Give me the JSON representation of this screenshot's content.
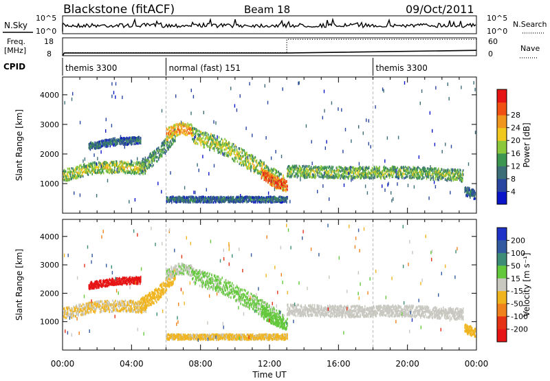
{
  "header": {
    "station": "Blackstone (fitACF)",
    "beam": "Beam 18",
    "date": "09/Oct/2011"
  },
  "noise_panel": {
    "left_label": "N.Sky",
    "left_top_tick": "10^5",
    "left_bottom_tick": "10^0",
    "right_label": "N.Search",
    "right_top_tick": "10^5",
    "right_bottom_tick": "10^0"
  },
  "freq_panel": {
    "left_label_1": "Freq.",
    "left_label_2": "[MHz]",
    "left_ticks": [
      "18",
      "8"
    ],
    "right_label": "Nave",
    "right_ticks": [
      "60",
      "0"
    ]
  },
  "cpid_panel": {
    "label": "CPID",
    "segments": [
      {
        "name": "themis 3300",
        "start_hour": 0,
        "end_hour": 6
      },
      {
        "name": "normal (fast) 151",
        "start_hour": 6,
        "end_hour": 18
      },
      {
        "name": "themis 3300",
        "start_hour": 18,
        "end_hour": 24
      }
    ]
  },
  "power_panel": {
    "ylabel": "Slant Range [km]",
    "yticks": [
      "1000",
      "2000",
      "3000",
      "4000"
    ],
    "colorbar_label": "Power [dB]",
    "colorbar_ticks": [
      "4",
      "8",
      "12",
      "16",
      "20",
      "24",
      "28"
    ],
    "colorbar_colors": [
      "#0a14c8",
      "#2846a0",
      "#3c6e78",
      "#3c9650",
      "#8cc83c",
      "#f0c81e",
      "#f0961e",
      "#f05014",
      "#e61414"
    ]
  },
  "velocity_panel": {
    "ylabel": "Slant Range [km]",
    "yticks": [
      "1000",
      "2000",
      "3000",
      "4000"
    ],
    "colorbar_label": "Velocity [m s⁻¹]",
    "colorbar_ticks": [
      "200",
      "100",
      "50",
      "15",
      "-15",
      "-50",
      "-100",
      "-200"
    ],
    "colorbar_colors": [
      "#1e32c8",
      "#325aa0",
      "#3c8c78",
      "#64c83c",
      "#c8c8c0",
      "#f0b41e",
      "#f0821e",
      "#e63214",
      "#e61414"
    ]
  },
  "xaxis": {
    "ticks": [
      "00:00",
      "04:00",
      "08:00",
      "12:00",
      "16:00",
      "20:00",
      "00:00"
    ],
    "label": "Time UT"
  },
  "chart_data": {
    "type": "heatmap",
    "x_range_hours": [
      0,
      24
    ],
    "y_range_km": [
      0,
      4600
    ],
    "power_scale_db": [
      0,
      32
    ],
    "velocity_scale_ms": [
      -250,
      250
    ],
    "frequency": {
      "x_hours": [
        0,
        0.1,
        13,
        24
      ],
      "mhz": [
        8,
        9.5,
        9.5,
        11
      ]
    },
    "nave": {
      "x_hours": [
        0,
        0.1,
        13,
        13,
        18,
        24
      ],
      "values": [
        0,
        10,
        10,
        55,
        55,
        55
      ]
    },
    "scatter_bands": [
      {
        "start_h": 0.0,
        "end_h": 4.8,
        "center_km": [
          1300,
          1550,
          1600,
          1550
        ],
        "width_km": 250,
        "power_db": 18,
        "velocity_ms": -30
      },
      {
        "start_h": 1.5,
        "end_h": 4.5,
        "center_km": [
          2300,
          2450,
          2500
        ],
        "width_km": 150,
        "power_db": 10,
        "velocity_ms": -220
      },
      {
        "start_h": 4.5,
        "end_h": 6.5,
        "center_km": [
          1600,
          2000,
          2700
        ],
        "width_km": 300,
        "power_db": 14,
        "velocity_ms": -60
      },
      {
        "start_h": 6.0,
        "end_h": 7.5,
        "center_km": [
          2700,
          2900,
          2850
        ],
        "width_km": 250,
        "power_db": 24,
        "velocity_ms": 20
      },
      {
        "start_h": 7.5,
        "end_h": 12.8,
        "center_km": [
          2650,
          2300,
          1700,
          1050
        ],
        "width_km": 350,
        "power_db": 18,
        "velocity_ms": 40
      },
      {
        "start_h": 11.5,
        "end_h": 13.0,
        "center_km": [
          1400,
          1100,
          950
        ],
        "width_km": 250,
        "power_db": 28,
        "velocity_ms": 60
      },
      {
        "start_h": 13.0,
        "end_h": 23.2,
        "center_km": [
          1450,
          1400,
          1420,
          1300
        ],
        "width_km": 250,
        "power_db": 16,
        "velocity_ms": -5
      },
      {
        "start_h": 23.3,
        "end_h": 23.9,
        "center_km": [
          800,
          650
        ],
        "width_km": 200,
        "power_db": 10,
        "velocity_ms": -60
      },
      {
        "start_h": 6.0,
        "end_h": 13.0,
        "center_km": [
          500,
          500
        ],
        "width_km": 120,
        "power_db": 10,
        "velocity_ms": -40
      }
    ]
  }
}
